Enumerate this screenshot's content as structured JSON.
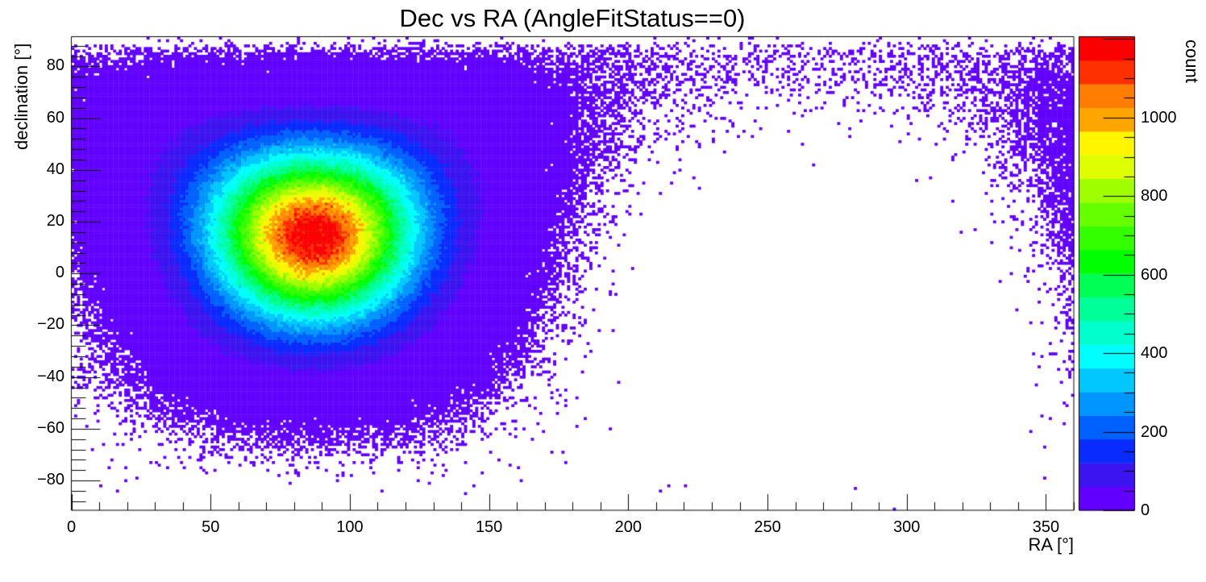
{
  "chart_data": {
    "type": "heatmap",
    "title": "Dec vs RA (AngleFitStatus==0)",
    "xlabel": "RA [°]",
    "ylabel": "declination [°]",
    "colorbar_label": "count",
    "xlim": [
      0,
      360
    ],
    "ylim": [
      -91.5,
      91.5
    ],
    "zlim": [
      0,
      1206
    ],
    "grid": false,
    "legend_position": "right-colorbar",
    "x_tick_values": [
      0,
      50,
      100,
      150,
      200,
      250,
      300,
      350
    ],
    "x_tick_labels": [
      "0",
      "50",
      "100",
      "150",
      "200",
      "250",
      "300",
      "350"
    ],
    "x_minor_step": 10,
    "y_tick_values": [
      80,
      60,
      40,
      20,
      0,
      -20,
      -40,
      -60,
      -80
    ],
    "y_tick_labels": [
      "80",
      "60",
      "40",
      "20",
      "0",
      "−20",
      "−40",
      "−60",
      "−80"
    ],
    "y_minor_step": 4,
    "z_tick_values": [
      0,
      200,
      400,
      600,
      800,
      1000
    ],
    "z_tick_labels": [
      "0",
      "200",
      "400",
      "600",
      "800",
      "1000"
    ],
    "z_minor_step": 50,
    "n_contours": 20,
    "bin_size_deg": 1,
    "palette": [
      "#6100ff",
      "#3c14f0",
      "#0a2bff",
      "#0061ff",
      "#0095ff",
      "#00c8ff",
      "#00ffff",
      "#00ffcc",
      "#00ff99",
      "#00ff55",
      "#00ff00",
      "#33ff00",
      "#66ff00",
      "#9fff00",
      "#dfff00",
      "#fff500",
      "#ffa500",
      "#ff7d00",
      "#ff3000",
      "#fa0000"
    ],
    "distribution": {
      "description": "Sky map of event counts: single hotspot, Gaussian in angular distance on the sphere, Poisson bin noise, cos(dec) exposure; empty region near RA 180-340 at low/mid declination",
      "peak_ra_deg": 87,
      "peak_dec_deg": 17,
      "sigma_deg": 23,
      "peak_count": 1205,
      "amplitude": 1260,
      "seed": 1337
    }
  }
}
